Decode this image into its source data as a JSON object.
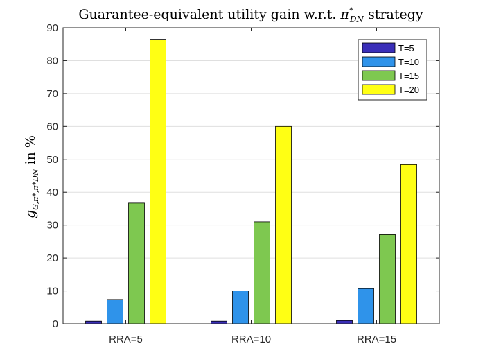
{
  "chart_data": {
    "type": "bar",
    "title_prefix": "Guarantee-equivalent utility gain w.r.t. ",
    "title_symbol": "π",
    "title_superscript": "*",
    "title_subscript": "DN",
    "title_suffix": " strategy",
    "ylabel_symbol": "g",
    "ylabel_subscript": "G,π*,π*DN",
    "ylabel_unit": "in %",
    "categories": [
      "RRA=5",
      "RRA=10",
      "RRA=15"
    ],
    "series": [
      {
        "name": "T=5",
        "color": "#3a2eb8",
        "values": [
          0.8,
          0.8,
          1.0
        ]
      },
      {
        "name": "T=10",
        "color": "#2f93ea",
        "values": [
          7.4,
          10.0,
          10.7
        ]
      },
      {
        "name": "T=15",
        "color": "#7ec850",
        "values": [
          36.7,
          31.0,
          27.1
        ]
      },
      {
        "name": "T=20",
        "color": "#ffff14",
        "values": [
          86.5,
          60.0,
          48.4
        ]
      }
    ],
    "ylim": [
      0,
      90
    ],
    "yticks": [
      0,
      10,
      20,
      30,
      40,
      50,
      60,
      70,
      80,
      90
    ],
    "grid": true,
    "legend_position": "top-right"
  }
}
